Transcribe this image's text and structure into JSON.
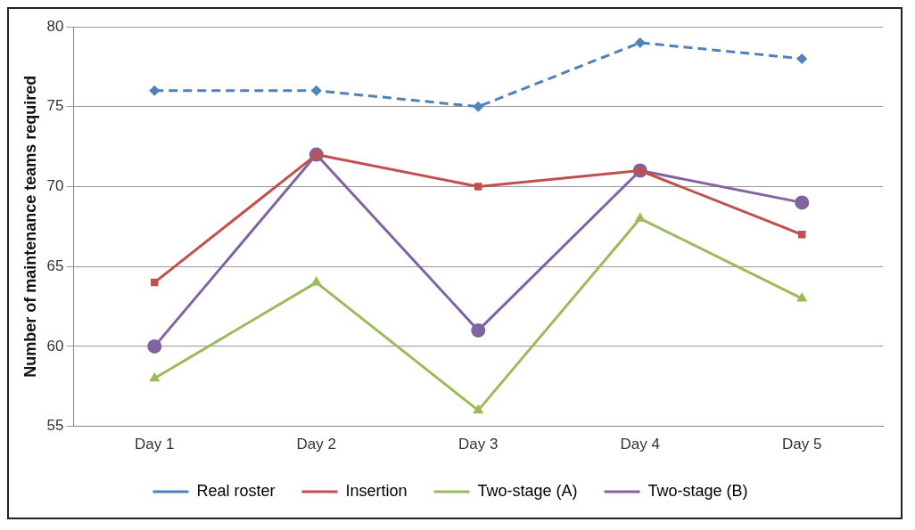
{
  "chart_data": {
    "type": "line",
    "ylabel": "Number of maintenance teams required",
    "categories": [
      "Day 1",
      "Day 2",
      "Day 3",
      "Day 4",
      "Day 5"
    ],
    "series": [
      {
        "name": "Real roster",
        "color": "#4f81bd",
        "values": [
          76,
          76,
          75,
          79,
          78
        ],
        "marker": "diamond",
        "line_style": "dashed"
      },
      {
        "name": "Insertion",
        "color": "#c0504d",
        "values": [
          64,
          72,
          70,
          71,
          67
        ],
        "marker": "square",
        "line_style": "solid"
      },
      {
        "name": "Two-stage (A)",
        "color": "#9bbb59",
        "values": [
          58,
          64,
          56,
          68,
          63
        ],
        "marker": "triangle",
        "line_style": "solid"
      },
      {
        "name": "Two-stage (B)",
        "color": "#8064a2",
        "values": [
          60,
          72,
          61,
          71,
          69
        ],
        "marker": "circle",
        "line_style": "solid"
      }
    ],
    "ylim": [
      55,
      80
    ],
    "yticks": [
      55,
      60,
      65,
      70,
      75,
      80
    ],
    "grid": "y",
    "legend": "bottom"
  }
}
